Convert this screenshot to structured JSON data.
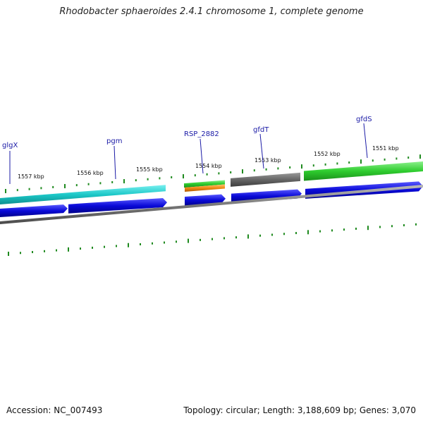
{
  "title": "Rhodobacter sphaeroides 2.4.1 chromosome 1, complete genome",
  "footer": {
    "accession": "Accession: NC_007493",
    "summary": "Topology: circular; Length: 3,188,609 bp; Genes: 3,070"
  },
  "colors": {
    "cds_blue": "#0a0ad8",
    "cyan_gene": "#1cc8c8",
    "green_gene": "#2ecc2e",
    "grey_gene": "#666666",
    "orange_gene": "#f08a14",
    "tick_green": "#1f8a1f",
    "backbone": "#7a7a7a",
    "label_blue": "#1a1aa6"
  },
  "tick_labels": [
    "1557 kbp",
    "1556 kbp",
    "1555 kbp",
    "1554 kbp",
    "1553 kbp",
    "1552 kbp",
    "1551 kbp"
  ],
  "gene_labels": [
    "glgX",
    "pgm",
    "RSP_2882",
    "gfdT",
    "gfdS"
  ]
}
